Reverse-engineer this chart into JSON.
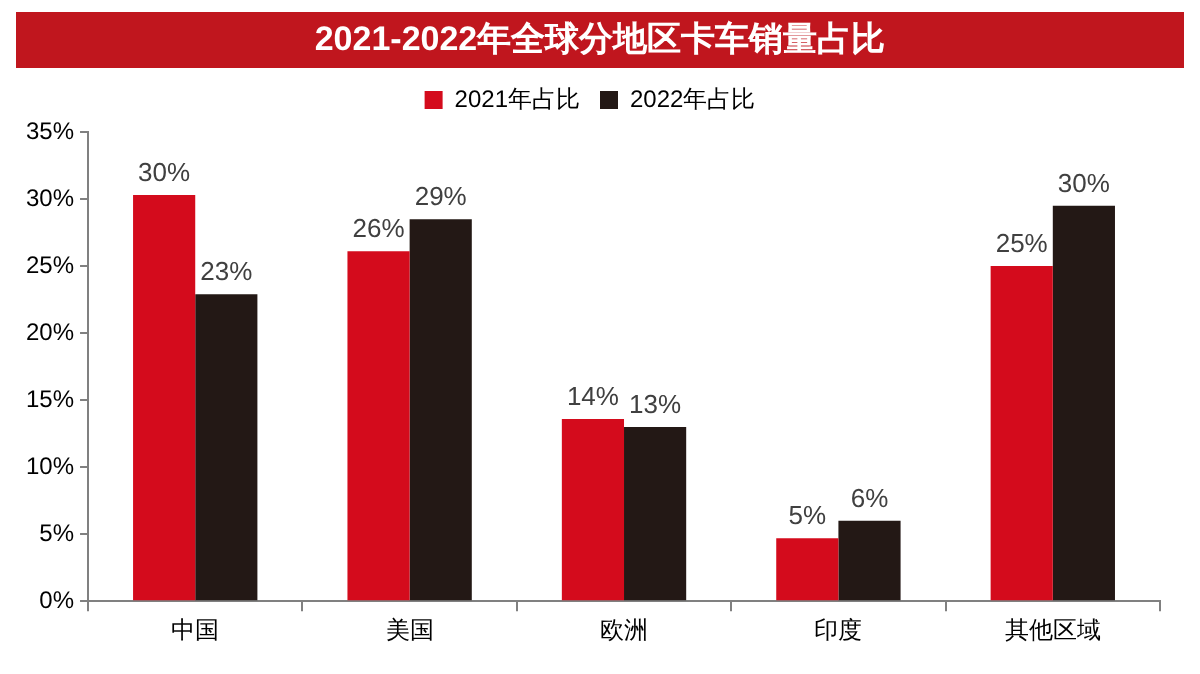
{
  "chart_data": {
    "type": "bar",
    "title": "2021-2022年全球分地区卡车销量占比",
    "categories": [
      "中国",
      "美国",
      "欧洲",
      "印度",
      "其他区域"
    ],
    "series": [
      {
        "name": "2021年占比",
        "color": "#d40b1c",
        "values": [
          30.3,
          26.1,
          13.6,
          4.7,
          25.0
        ],
        "value_labels": [
          "30%",
          "26%",
          "14%",
          "5%",
          "25%"
        ]
      },
      {
        "name": "2022年占比",
        "color": "#231815",
        "values": [
          22.9,
          28.5,
          13.0,
          6.0,
          29.5
        ],
        "value_labels": [
          "23%",
          "29%",
          "13%",
          "6%",
          "30%"
        ]
      }
    ],
    "ylim": [
      0,
      35
    ],
    "yticks": [
      {
        "value": 0,
        "label": "0%"
      },
      {
        "value": 5,
        "label": "5%"
      },
      {
        "value": 10,
        "label": "10%"
      },
      {
        "value": 15,
        "label": "15%"
      },
      {
        "value": 20,
        "label": "20%"
      },
      {
        "value": 25,
        "label": "25%"
      },
      {
        "value": 30,
        "label": "30%"
      },
      {
        "value": 35,
        "label": "35%"
      }
    ],
    "grid": false,
    "legend": "top"
  }
}
